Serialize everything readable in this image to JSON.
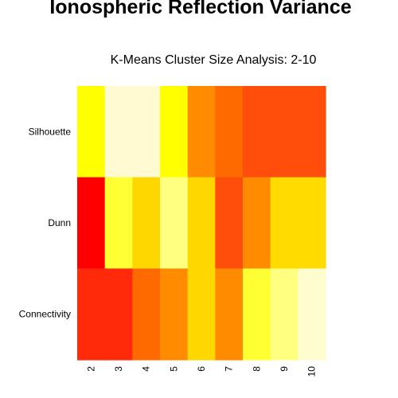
{
  "chart_data": {
    "type": "heatmap",
    "title": "Ionospheric Reflection Variance",
    "subtitle": "K-Means Cluster Size Analysis: 2-10",
    "x": [
      "2",
      "3",
      "4",
      "5",
      "6",
      "7",
      "8",
      "9",
      "10"
    ],
    "y": [
      "Silhouette",
      "Dunn",
      "Connectivity"
    ],
    "colors": {
      "Silhouette": [
        "#FFFF00",
        "#FFFAD2",
        "#FFFAD2",
        "#FFFF00",
        "#FF8C00",
        "#FF6A00",
        "#FF4E0C",
        "#FF4E0C",
        "#FF4E0C"
      ],
      "Dunn": [
        "#FF0000",
        "#FFFF33",
        "#FFD700",
        "#FFFF80",
        "#FFD700",
        "#FF4E0C",
        "#FF8C00",
        "#FFDB00",
        "#FFDB00"
      ],
      "Connectivity": [
        "#FF2A0A",
        "#FF2A0A",
        "#FF6A00",
        "#FF8C00",
        "#FFD700",
        "#FF8C00",
        "#FFFF33",
        "#FFFF80",
        "#FFFCD0"
      ]
    },
    "legend": "none",
    "grid": false
  }
}
